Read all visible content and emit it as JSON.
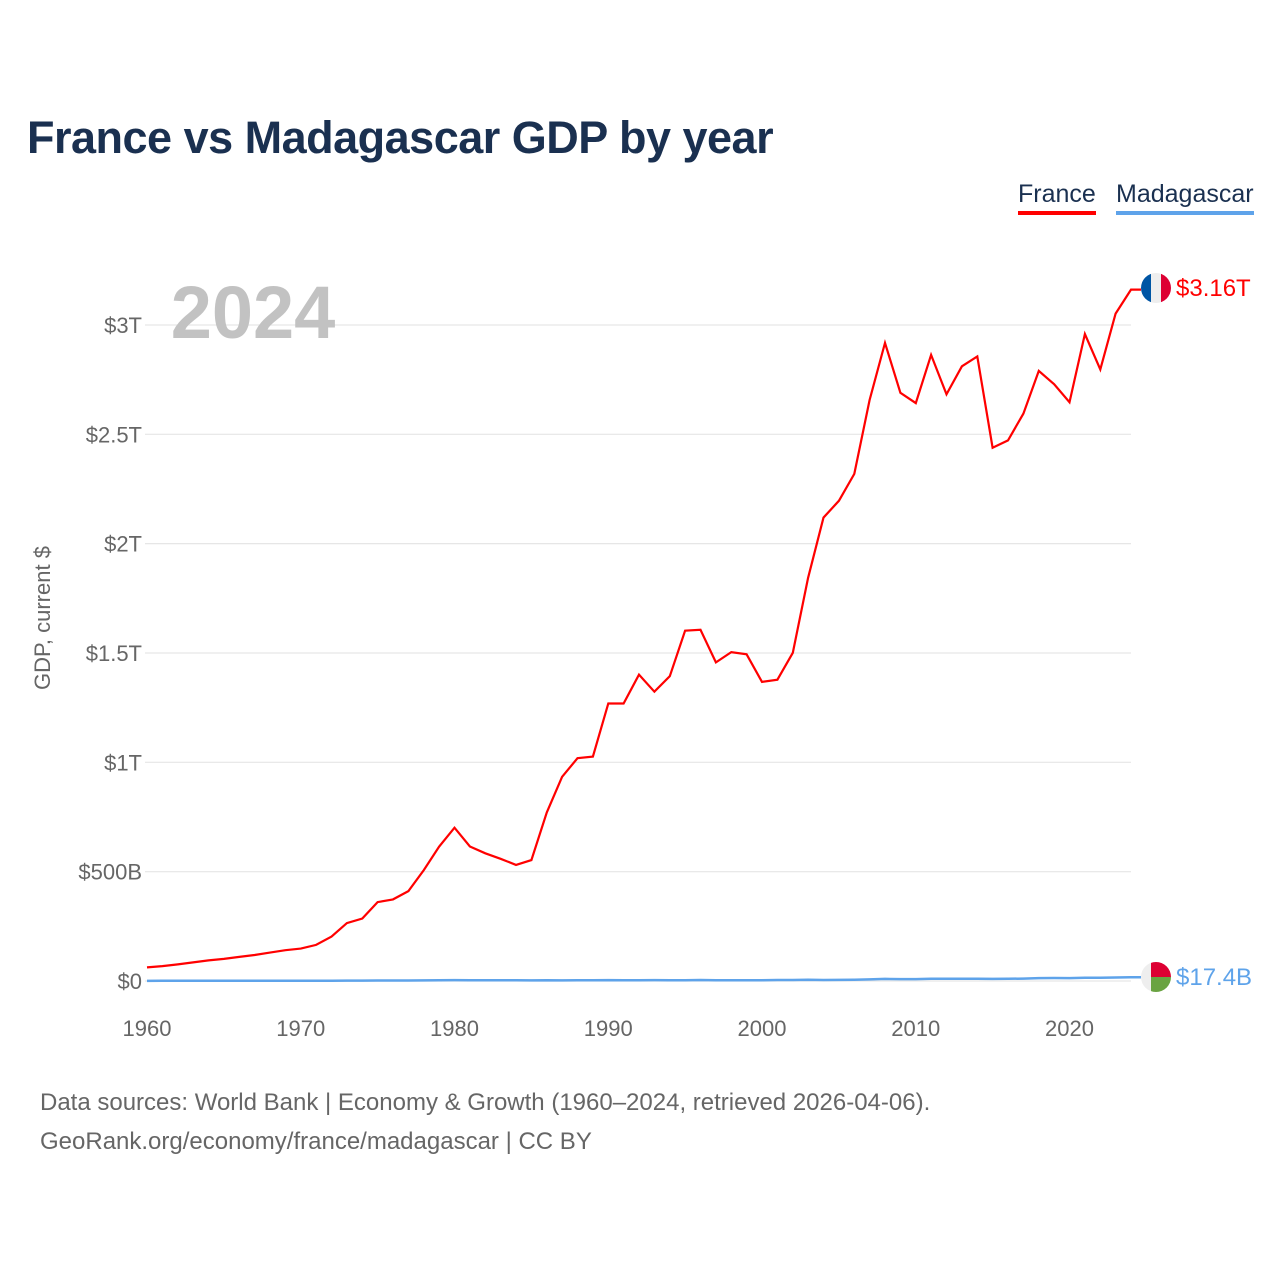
{
  "title": "France vs Madagascar GDP by year",
  "legend": [
    "France",
    "Madagascar"
  ],
  "source_line1": "Data sources: World Bank | Economy & Growth (1960–2024, retrieved 2026-04-06).",
  "source_line2": "GeoRank.org/economy/france/madagascar | CC BY",
  "chart_data": {
    "type": "line",
    "title": "France vs Madagascar GDP by year",
    "ylabel": "GDP, current $",
    "xlabel": "",
    "year_overlay": "2024",
    "xlim": [
      1960,
      2024
    ],
    "ylim_trillions": [
      0,
      3.2
    ],
    "x_ticks": [
      1960,
      1970,
      1980,
      1990,
      2000,
      2010,
      2020
    ],
    "y_ticks": [
      {
        "v": 0,
        "label": "$0"
      },
      {
        "v": 0.5,
        "label": "$500B"
      },
      {
        "v": 1,
        "label": "$1T"
      },
      {
        "v": 1.5,
        "label": "$1.5T"
      },
      {
        "v": 2,
        "label": "$2T"
      },
      {
        "v": 2.5,
        "label": "$2.5T"
      },
      {
        "v": 3,
        "label": "$3T"
      }
    ],
    "grid": true,
    "legend_position": "top-right",
    "x": [
      1960,
      1961,
      1962,
      1963,
      1964,
      1965,
      1966,
      1967,
      1968,
      1969,
      1970,
      1971,
      1972,
      1973,
      1974,
      1975,
      1976,
      1977,
      1978,
      1979,
      1980,
      1981,
      1982,
      1983,
      1984,
      1985,
      1986,
      1987,
      1988,
      1989,
      1990,
      1991,
      1992,
      1993,
      1994,
      1995,
      1996,
      1997,
      1998,
      1999,
      2000,
      2001,
      2002,
      2003,
      2004,
      2005,
      2006,
      2007,
      2008,
      2009,
      2010,
      2011,
      2012,
      2013,
      2014,
      2015,
      2016,
      2017,
      2018,
      2019,
      2020,
      2021,
      2022,
      2023,
      2024
    ],
    "series": [
      {
        "name": "France",
        "unit": "trillion USD",
        "color": "#ff0000",
        "end_label": "$3.16T",
        "values": [
          0.062,
          0.068,
          0.076,
          0.085,
          0.094,
          0.101,
          0.11,
          0.119,
          0.13,
          0.141,
          0.148,
          0.165,
          0.203,
          0.265,
          0.286,
          0.361,
          0.373,
          0.411,
          0.507,
          0.614,
          0.701,
          0.615,
          0.584,
          0.559,
          0.531,
          0.553,
          0.771,
          0.934,
          1.019,
          1.026,
          1.269,
          1.269,
          1.401,
          1.323,
          1.394,
          1.602,
          1.606,
          1.457,
          1.504,
          1.494,
          1.368,
          1.378,
          1.501,
          1.844,
          2.119,
          2.196,
          2.319,
          2.657,
          2.918,
          2.69,
          2.643,
          2.863,
          2.683,
          2.811,
          2.856,
          2.439,
          2.472,
          2.595,
          2.79,
          2.729,
          2.647,
          2.959,
          2.797,
          3.052,
          3.162
        ]
      },
      {
        "name": "Madagascar",
        "unit": "billion USD",
        "color": "#5ea3ea",
        "end_label": "$17.4B",
        "values": [
          0.67,
          0.7,
          0.74,
          0.78,
          0.83,
          0.88,
          0.94,
          1.01,
          1.09,
          1.16,
          1.1,
          1.19,
          1.33,
          1.64,
          1.86,
          2.33,
          2.27,
          2.49,
          2.85,
          3.62,
          4.04,
          3.55,
          3.54,
          3.45,
          3.0,
          2.86,
          3.55,
          2.96,
          3.01,
          3.11,
          3.93,
          3.25,
          3.63,
          3.91,
          3.1,
          3.62,
          4.39,
          3.75,
          3.88,
          3.72,
          3.88,
          4.53,
          4.4,
          5.47,
          4.36,
          5.04,
          5.52,
          7.34,
          9.41,
          8.55,
          8.73,
          9.89,
          9.92,
          10.6,
          10.67,
          9.74,
          10.0,
          11.19,
          13.18,
          13.76,
          13.05,
          14.47,
          15.2,
          16.03,
          17.4
        ]
      }
    ]
  }
}
